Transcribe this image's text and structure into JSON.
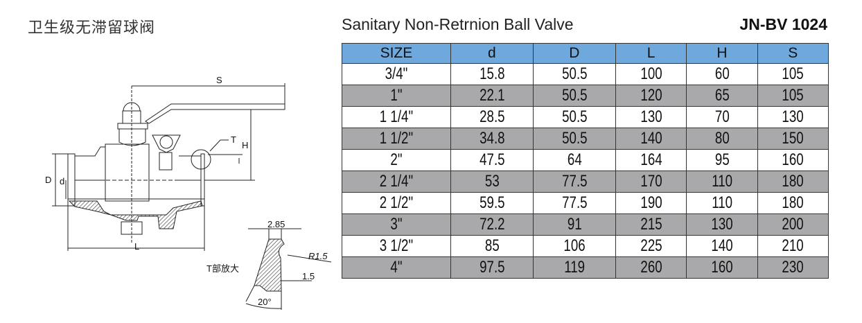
{
  "title_cn": "卫生级无滞留球阀",
  "title_en": "Sanitary Non-Retrnion Ball Valve",
  "model": "JN-BV 1024",
  "table": {
    "headers": [
      "SIZE",
      "d",
      "D",
      "L",
      "H",
      "S"
    ],
    "header_color": "#6fa8dc",
    "alt_row_color": "#a9a9ab",
    "rows": [
      [
        "3/4\"",
        "15.8",
        "50.5",
        "100",
        "60",
        "105"
      ],
      [
        "1\"",
        "22.1",
        "50.5",
        "120",
        "65",
        "105"
      ],
      [
        "1 1/4\"",
        "28.5",
        "50.5",
        "130",
        "70",
        "130"
      ],
      [
        "1 1/2\"",
        "34.8",
        "50.5",
        "140",
        "80",
        "150"
      ],
      [
        "2\"",
        "47.5",
        "64",
        "164",
        "95",
        "160"
      ],
      [
        "2 1/4\"",
        "53",
        "77.5",
        "170",
        "110",
        "180"
      ],
      [
        "2 1/2\"",
        "59.5",
        "77.5",
        "190",
        "110",
        "180"
      ],
      [
        "3\"",
        "72.2",
        "91",
        "215",
        "130",
        "200"
      ],
      [
        "3 1/2\"",
        "85",
        "106",
        "225",
        "140",
        "210"
      ],
      [
        "4\"",
        "97.5",
        "119",
        "260",
        "160",
        "230"
      ]
    ]
  },
  "drawing": {
    "labels": {
      "S": "S",
      "T": "T",
      "H": "H",
      "D": "D",
      "d": "d",
      "L": "L",
      "w": "2.85",
      "r": "R1.5",
      "t": "1.5",
      "angle": "20°",
      "detail": "T部放大"
    }
  }
}
